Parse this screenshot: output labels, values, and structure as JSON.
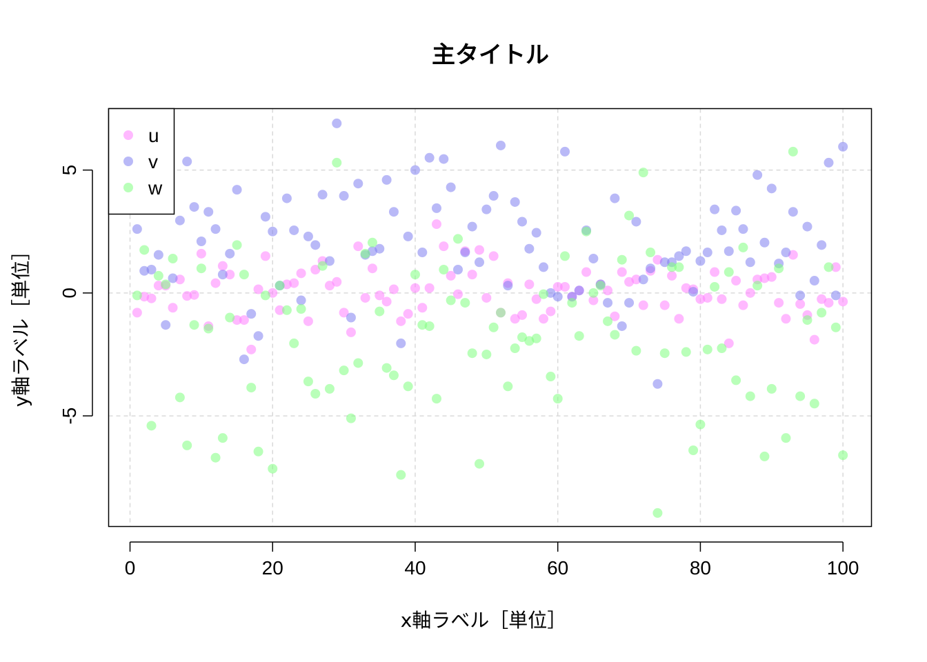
{
  "chart_data": {
    "type": "scatter",
    "title": "主タイトル",
    "xlabel": "x軸ラベル［単位］",
    "ylabel": "y軸ラベル［単位］",
    "xlim": [
      -3,
      104
    ],
    "ylim": [
      -9.5,
      7.5
    ],
    "xticks": [
      0,
      20,
      40,
      60,
      80,
      100
    ],
    "yticks": [
      -5,
      0,
      5
    ],
    "grid": true,
    "legend": {
      "position": "top-left"
    },
    "series": [
      {
        "name": "u",
        "color": "#FF80FF",
        "x": [
          1,
          2,
          3,
          4,
          5,
          6,
          7,
          8,
          9,
          10,
          11,
          12,
          13,
          14,
          15,
          16,
          17,
          18,
          19,
          20,
          21,
          22,
          23,
          24,
          25,
          26,
          27,
          28,
          29,
          30,
          31,
          32,
          33,
          34,
          35,
          36,
          37,
          38,
          39,
          40,
          41,
          42,
          43,
          44,
          45,
          46,
          47,
          48,
          49,
          50,
          51,
          52,
          53,
          54,
          55,
          56,
          57,
          58,
          59,
          60,
          61,
          62,
          63,
          64,
          65,
          66,
          67,
          68,
          69,
          70,
          71,
          72,
          73,
          74,
          75,
          76,
          77,
          78,
          79,
          80,
          81,
          82,
          83,
          84,
          85,
          86,
          87,
          88,
          89,
          90,
          91,
          92,
          93,
          94,
          95,
          96,
          97,
          98,
          99,
          100
        ],
        "y": [
          -0.8,
          -0.15,
          -0.22,
          0.3,
          0.3,
          -0.6,
          0.55,
          -0.12,
          -0.08,
          1.6,
          -1.35,
          0.4,
          1.1,
          0.75,
          -1.1,
          -1.1,
          -2.3,
          0.15,
          1.5,
          0.0,
          -0.7,
          0.35,
          0.4,
          0.8,
          -1.15,
          0.95,
          1.3,
          0.3,
          0.45,
          -0.8,
          -1.6,
          1.9,
          -0.2,
          1.0,
          -0.1,
          -0.35,
          0.15,
          -1.15,
          -0.85,
          0.2,
          -0.6,
          0.2,
          2.8,
          1.9,
          0.7,
          -0.05,
          1.7,
          0.75,
          1.75,
          -0.2,
          1.5,
          -0.8,
          0.4,
          -1.05,
          -0.9,
          0.35,
          -0.25,
          -1.05,
          -0.75,
          0.25,
          0.25,
          -0.15,
          0.1,
          0.85,
          -0.3,
          0.35,
          0.1,
          -0.95,
          0.85,
          0.45,
          0.55,
          -0.5,
          0.9,
          1.35,
          -0.5,
          0.7,
          -1.05,
          0.2,
          0.15,
          -0.25,
          -0.2,
          0.85,
          -0.25,
          -2.05,
          0.5,
          -0.5,
          0.0,
          0.55,
          0.6,
          0.65,
          -0.4,
          -1.05,
          1.55,
          -0.45,
          -0.9,
          -1.9,
          -0.25,
          -0.4,
          1.05,
          -0.35
        ]
      },
      {
        "name": "v",
        "color": "#8080F0",
        "x": [
          1,
          2,
          3,
          4,
          5,
          6,
          7,
          8,
          9,
          10,
          11,
          12,
          13,
          14,
          15,
          16,
          17,
          18,
          19,
          20,
          21,
          22,
          23,
          24,
          25,
          26,
          27,
          28,
          29,
          30,
          31,
          32,
          33,
          34,
          35,
          36,
          37,
          38,
          39,
          40,
          41,
          42,
          43,
          44,
          45,
          46,
          47,
          48,
          49,
          50,
          51,
          52,
          53,
          54,
          55,
          56,
          57,
          58,
          59,
          60,
          61,
          62,
          63,
          64,
          65,
          66,
          67,
          68,
          69,
          70,
          71,
          72,
          73,
          74,
          75,
          76,
          77,
          78,
          79,
          80,
          81,
          82,
          83,
          84,
          85,
          86,
          87,
          88,
          89,
          90,
          91,
          92,
          93,
          94,
          95,
          96,
          97,
          98,
          99,
          100
        ],
        "y": [
          2.6,
          0.9,
          0.95,
          1.55,
          -1.3,
          0.6,
          2.95,
          5.35,
          3.5,
          2.1,
          3.3,
          2.6,
          0.75,
          1.6,
          4.2,
          -2.7,
          -0.85,
          -1.75,
          3.1,
          2.5,
          0.3,
          3.85,
          2.55,
          -0.3,
          2.3,
          1.95,
          4.0,
          1.3,
          6.9,
          3.95,
          -1.0,
          4.45,
          1.55,
          1.7,
          1.8,
          4.6,
          3.3,
          -2.05,
          2.3,
          5.0,
          1.65,
          5.5,
          3.45,
          5.45,
          4.3,
          0.95,
          1.65,
          2.7,
          1.25,
          3.4,
          3.95,
          6.0,
          0.3,
          3.7,
          2.9,
          1.8,
          2.45,
          1.05,
          0.0,
          -0.15,
          5.75,
          -0.15,
          0.1,
          2.55,
          1.4,
          0.35,
          -0.4,
          3.85,
          -1.35,
          -0.4,
          2.9,
          0.55,
          1.0,
          -3.7,
          1.25,
          1.25,
          1.5,
          1.7,
          0.05,
          1.3,
          1.65,
          3.4,
          2.55,
          1.7,
          3.35,
          2.6,
          1.25,
          4.8,
          2.05,
          4.25,
          1.2,
          1.65,
          3.3,
          -0.1,
          2.7,
          0.5,
          1.95,
          5.3,
          -0.1,
          5.95
        ]
      },
      {
        "name": "w",
        "color": "#80FF80",
        "x": [
          1,
          2,
          3,
          4,
          5,
          6,
          7,
          8,
          9,
          10,
          11,
          12,
          13,
          14,
          15,
          16,
          17,
          18,
          19,
          20,
          21,
          22,
          23,
          24,
          25,
          26,
          27,
          28,
          29,
          30,
          31,
          32,
          33,
          34,
          35,
          36,
          37,
          38,
          39,
          40,
          41,
          42,
          43,
          44,
          45,
          46,
          47,
          48,
          49,
          50,
          51,
          52,
          53,
          54,
          55,
          56,
          57,
          58,
          59,
          60,
          61,
          62,
          63,
          64,
          65,
          66,
          67,
          68,
          69,
          70,
          71,
          72,
          73,
          74,
          75,
          76,
          77,
          78,
          79,
          80,
          81,
          82,
          83,
          84,
          85,
          86,
          87,
          88,
          89,
          90,
          91,
          92,
          93,
          94,
          95,
          96,
          97,
          98,
          99,
          100
        ],
        "y": [
          -0.1,
          1.75,
          -5.4,
          0.7,
          0.35,
          1.4,
          -4.25,
          -6.2,
          -1.3,
          1.0,
          -1.45,
          -6.7,
          -5.9,
          -1.0,
          1.95,
          0.75,
          -3.85,
          -6.45,
          -0.1,
          -7.15,
          0.3,
          -0.7,
          -2.05,
          -0.65,
          -3.6,
          -4.1,
          1.1,
          -3.9,
          5.3,
          -3.15,
          -5.1,
          -2.85,
          1.6,
          2.05,
          -0.75,
          -3.05,
          -3.35,
          -7.4,
          -3.8,
          0.75,
          -1.3,
          -1.35,
          -4.3,
          0.95,
          -0.3,
          2.2,
          -0.4,
          -2.45,
          -6.95,
          -2.5,
          -1.4,
          -0.8,
          -3.8,
          -2.25,
          -1.8,
          -1.95,
          -1.85,
          -0.05,
          -3.4,
          -4.3,
          1.5,
          -0.4,
          -1.75,
          2.5,
          0.0,
          0.3,
          -1.15,
          -1.7,
          1.35,
          3.15,
          -2.35,
          4.9,
          1.65,
          -8.95,
          -2.45,
          1.05,
          1.05,
          -2.4,
          -6.4,
          -5.35,
          -2.3,
          0.25,
          -2.25,
          0.85,
          -3.55,
          1.85,
          -4.2,
          0.3,
          -6.65,
          -3.9,
          1.0,
          -5.9,
          5.75,
          -4.2,
          -1.1,
          -4.5,
          -0.8,
          1.05,
          -1.4,
          -6.6
        ]
      }
    ]
  }
}
